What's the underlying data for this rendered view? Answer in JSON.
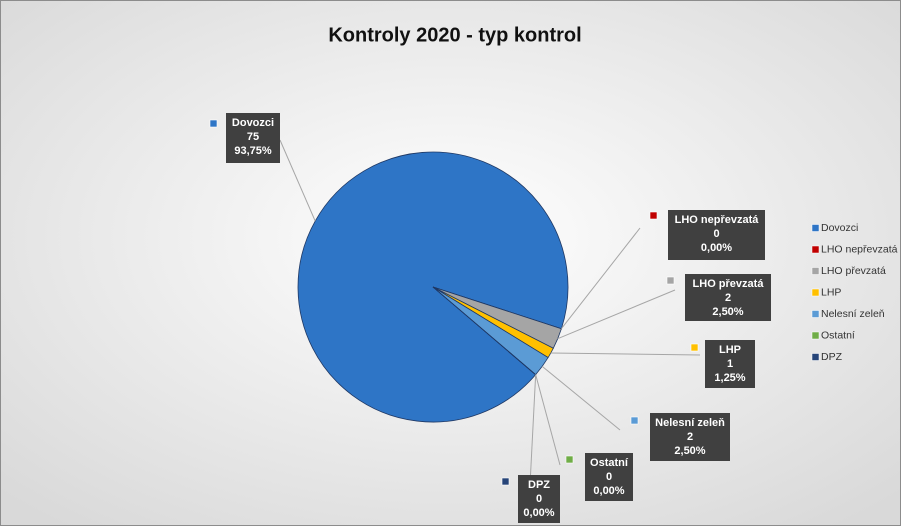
{
  "chart_data": {
    "type": "pie",
    "title": "Kontroly 2020 - typ kontrol",
    "categories": [
      "Dovozci",
      "LHO nepřevzatá",
      "LHO převzatá",
      "LHP",
      "Nelesní zeleň",
      "Ostatní",
      "DPZ"
    ],
    "values": [
      75,
      0,
      2,
      1,
      2,
      0,
      0
    ],
    "percent_labels": [
      "93,75%",
      "0,00%",
      "2,50%",
      "1,25%",
      "2,50%",
      "0,00%",
      "0,00%"
    ],
    "colors": [
      "#2e75c6",
      "#c00000",
      "#a5a5a5",
      "#ffc000",
      "#5b9bd5",
      "#70ad47",
      "#264478"
    ],
    "legend": "right"
  }
}
